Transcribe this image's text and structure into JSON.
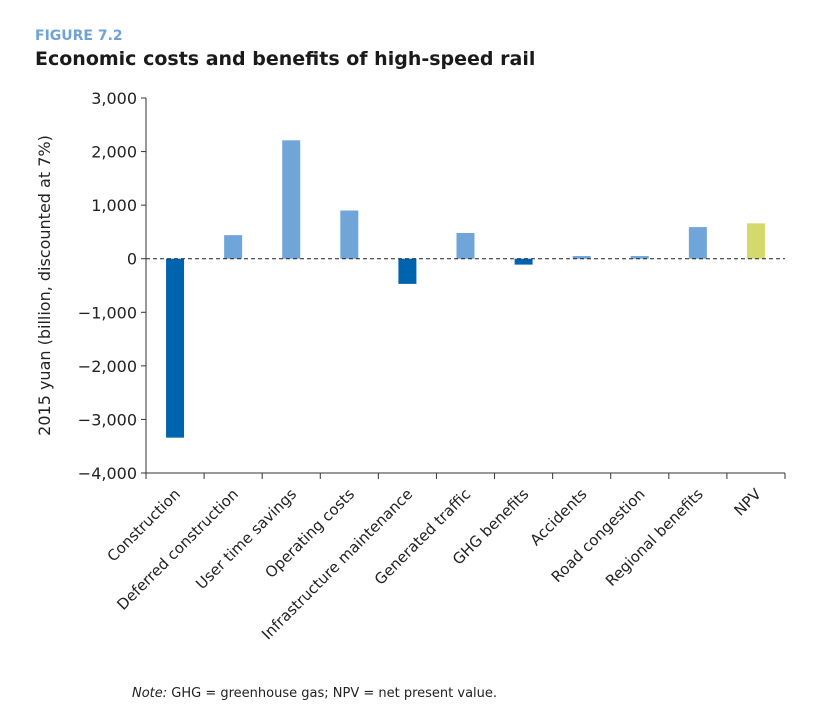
{
  "figure_label": "FIGURE 7.2",
  "title": "Economic costs and benefits of high-speed rail",
  "note_prefix": "Note:",
  "note_text": " GHG = greenhouse gas; NPV = net present value.",
  "chart_data": {
    "type": "bar",
    "title": "Economic costs and benefits of high-speed rail",
    "xlabel": "",
    "ylabel": "2015 yuan (billion, discounted at 7%)",
    "ylim": [
      -4000,
      3000
    ],
    "yticks": [
      3000,
      2000,
      1000,
      0,
      -1000,
      -2000,
      -3000,
      -4000
    ],
    "ytick_labels": [
      "3,000",
      "2,000",
      "1,000",
      "0",
      "−1,000",
      "−2,000",
      "−3,000",
      "−4,000"
    ],
    "grid": false,
    "zero_line": "dashed",
    "categories": [
      "Construction",
      "Deferred construction",
      "User time savings",
      "Operating costs",
      "Infrastructure maintenance",
      "Generated traffic",
      "GHG benefits",
      "Accidents",
      "Road congestion",
      "Regional benefits",
      "NPV"
    ],
    "values": [
      -3340,
      440,
      2210,
      900,
      -470,
      480,
      -110,
      50,
      50,
      590,
      660
    ],
    "colors": [
      "#0063ad",
      "#6fa5d9",
      "#6fa5d9",
      "#6fa5d9",
      "#0063ad",
      "#6fa5d9",
      "#0063ad",
      "#6fa5d9",
      "#6fa5d9",
      "#6fa5d9",
      "#d4d96e"
    ]
  }
}
